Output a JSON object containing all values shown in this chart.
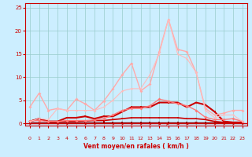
{
  "xlabel": "Vent moyen/en rafales ( km/h )",
  "xlim": [
    -0.5,
    23.5
  ],
  "ylim": [
    -0.5,
    26
  ],
  "yticks": [
    0,
    5,
    10,
    15,
    20,
    25
  ],
  "xticks": [
    0,
    1,
    2,
    3,
    4,
    5,
    6,
    7,
    8,
    9,
    10,
    11,
    12,
    13,
    14,
    15,
    16,
    17,
    18,
    19,
    20,
    21,
    22,
    23
  ],
  "bg_color": "#cceeff",
  "grid_color": "#99cccc",
  "axis_color": "#cc0000",
  "tick_color": "#cc0000",
  "xlabel_color": "#cc0000",
  "lines": [
    {
      "x": [
        0,
        1,
        2,
        3,
        4,
        5,
        6,
        7,
        8,
        9,
        10,
        11,
        12,
        13,
        14,
        15,
        16,
        17,
        18,
        19,
        20,
        21,
        22,
        23
      ],
      "y": [
        0.2,
        0.2,
        0.2,
        0.2,
        0.2,
        0.2,
        0.2,
        0.2,
        0.2,
        0.2,
        0.2,
        0.2,
        0.2,
        0.2,
        0.2,
        0.2,
        0.2,
        0.2,
        0.2,
        0.2,
        0.2,
        0.2,
        0.2,
        0.2
      ],
      "color": "#880000",
      "lw": 1.0,
      "marker": "s",
      "ms": 1.5
    },
    {
      "x": [
        0,
        1,
        2,
        3,
        4,
        5,
        6,
        7,
        8,
        9,
        10,
        11,
        12,
        13,
        14,
        15,
        16,
        17,
        18,
        19,
        20,
        21,
        22,
        23
      ],
      "y": [
        0.4,
        1.0,
        0.4,
        0.4,
        0.4,
        0.4,
        0.5,
        0.6,
        0.6,
        0.8,
        1.0,
        1.2,
        1.2,
        1.2,
        1.2,
        1.2,
        1.2,
        1.0,
        1.0,
        0.8,
        0.4,
        0.2,
        0.2,
        0.2
      ],
      "color": "#cc0000",
      "lw": 1.2,
      "marker": "s",
      "ms": 2.0
    },
    {
      "x": [
        0,
        1,
        2,
        3,
        4,
        5,
        6,
        7,
        8,
        9,
        10,
        11,
        12,
        13,
        14,
        15,
        16,
        17,
        18,
        19,
        20,
        21,
        22,
        23
      ],
      "y": [
        0.4,
        1.0,
        0.4,
        0.4,
        1.2,
        1.2,
        1.5,
        1.0,
        1.5,
        1.5,
        2.5,
        3.5,
        3.5,
        3.5,
        4.5,
        4.5,
        4.5,
        3.5,
        4.5,
        4.0,
        2.5,
        0.4,
        0.2,
        0.2
      ],
      "color": "#cc0000",
      "lw": 1.5,
      "marker": "s",
      "ms": 2.0
    },
    {
      "x": [
        0,
        1,
        2,
        3,
        4,
        5,
        6,
        7,
        8,
        9,
        10,
        11,
        12,
        13,
        14,
        15,
        16,
        17,
        18,
        19,
        20,
        21,
        22,
        23
      ],
      "y": [
        0.5,
        0.6,
        0.4,
        0.4,
        0.6,
        0.6,
        0.6,
        0.7,
        1.0,
        1.8,
        2.8,
        3.2,
        3.2,
        3.8,
        5.2,
        4.8,
        4.2,
        3.8,
        2.8,
        1.3,
        0.8,
        0.8,
        1.0,
        0.4
      ],
      "color": "#ff7777",
      "lw": 1.0,
      "marker": "D",
      "ms": 2.0
    },
    {
      "x": [
        0,
        1,
        2,
        3,
        4,
        5,
        6,
        7,
        8,
        9,
        10,
        11,
        12,
        13,
        14,
        15,
        16,
        17,
        18,
        19,
        20,
        21,
        22,
        23
      ],
      "y": [
        3.5,
        6.5,
        2.8,
        3.2,
        2.8,
        5.2,
        4.2,
        2.8,
        4.8,
        7.5,
        10.5,
        13.0,
        7.0,
        8.5,
        15.5,
        22.5,
        16.0,
        15.5,
        11.0,
        3.2,
        1.8,
        2.2,
        2.8,
        2.8
      ],
      "color": "#ffaaaa",
      "lw": 1.0,
      "marker": "D",
      "ms": 2.0
    },
    {
      "x": [
        0,
        1,
        2,
        3,
        4,
        5,
        6,
        7,
        8,
        9,
        10,
        11,
        12,
        13,
        14,
        15,
        16,
        17,
        18,
        19,
        20,
        21,
        22,
        23
      ],
      "y": [
        0.4,
        1.0,
        0.8,
        3.2,
        2.8,
        2.8,
        2.8,
        2.8,
        3.5,
        5.0,
        7.0,
        7.5,
        7.5,
        10.5,
        15.0,
        22.5,
        15.0,
        14.0,
        11.0,
        2.8,
        1.2,
        1.8,
        1.8,
        0.4
      ],
      "color": "#ffbbbb",
      "lw": 0.8,
      "marker": "D",
      "ms": 1.5
    }
  ],
  "wind_arrows": [
    [
      0,
      45
    ],
    [
      1,
      45
    ],
    [
      3,
      45
    ],
    [
      4,
      45
    ],
    [
      6,
      45
    ],
    [
      7,
      45
    ],
    [
      9,
      45
    ],
    [
      10,
      45
    ],
    [
      11,
      45
    ],
    [
      12,
      45
    ],
    [
      13,
      45
    ],
    [
      14,
      135
    ],
    [
      15,
      90
    ],
    [
      16,
      135
    ],
    [
      17,
      135
    ],
    [
      18,
      180
    ],
    [
      19,
      45
    ],
    [
      20,
      45
    ],
    [
      21,
      45
    ],
    [
      22,
      45
    ],
    [
      23,
      45
    ]
  ]
}
